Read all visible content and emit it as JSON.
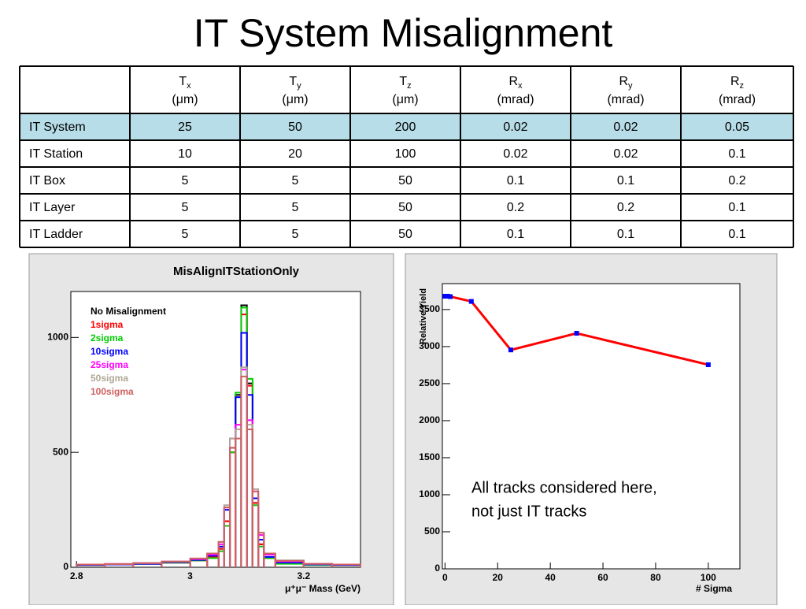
{
  "title": "IT System Misalignment",
  "table": {
    "header": [
      {
        "symbol": "T",
        "sub": "x",
        "unit": "(μm)"
      },
      {
        "symbol": "T",
        "sub": "y",
        "unit": "(μm)"
      },
      {
        "symbol": "T",
        "sub": "z",
        "unit": "(μm)"
      },
      {
        "symbol": "R",
        "sub": "x",
        "unit": "(mrad)"
      },
      {
        "symbol": "R",
        "sub": "y",
        "unit": "(mrad)"
      },
      {
        "symbol": "R",
        "sub": "z",
        "unit": "(mrad)"
      }
    ],
    "rows": [
      [
        "IT System",
        25,
        50,
        200,
        0.02,
        0.02,
        0.05
      ],
      [
        "IT Station",
        10,
        20,
        100,
        0.02,
        0.02,
        0.1
      ],
      [
        "IT Box",
        5,
        5,
        50,
        0.1,
        0.1,
        0.2
      ],
      [
        "IT Layer",
        5,
        5,
        50,
        0.2,
        0.2,
        0.1
      ],
      [
        "IT Ladder",
        5,
        5,
        50,
        0.1,
        0.1,
        0.1
      ]
    ]
  },
  "chart_data": [
    {
      "type": "histogram",
      "title": "MisAlignITStationOnly",
      "x_label": "μ⁺μ⁻ Mass (GeV)",
      "bins": [
        2.8,
        2.85,
        2.9,
        2.95,
        3.0,
        3.03,
        3.05,
        3.06,
        3.07,
        3.08,
        3.09,
        3.1,
        3.11,
        3.12,
        3.13,
        3.15,
        3.2,
        3.25,
        3.3
      ],
      "series": [
        {
          "name": "No Misalignment",
          "color": "#000000",
          "values": [
            10,
            12,
            15,
            20,
            30,
            45,
            80,
            200,
            500,
            750,
            1140,
            800,
            280,
            100,
            40,
            20,
            12,
            10
          ]
        },
        {
          "name": "1sigma",
          "color": "#ff0000",
          "values": [
            10,
            12,
            15,
            20,
            30,
            45,
            80,
            200,
            500,
            740,
            1100,
            790,
            280,
            100,
            40,
            22,
            12,
            10
          ]
        },
        {
          "name": "2sigma",
          "color": "#00cc00",
          "values": [
            10,
            12,
            15,
            20,
            30,
            40,
            70,
            180,
            500,
            760,
            1130,
            820,
            270,
            90,
            40,
            15,
            10,
            10
          ]
        },
        {
          "name": "10sigma",
          "color": "#0000ff",
          "values": [
            10,
            12,
            15,
            22,
            32,
            50,
            90,
            250,
            520,
            740,
            1020,
            750,
            300,
            120,
            45,
            20,
            12,
            10
          ]
        },
        {
          "name": "25sigma",
          "color": "#ff00ff",
          "values": [
            12,
            14,
            18,
            25,
            35,
            55,
            100,
            260,
            560,
            620,
            860,
            640,
            330,
            140,
            55,
            25,
            15,
            12
          ]
        },
        {
          "name": "50sigma",
          "color": "#b0a898",
          "values": [
            12,
            14,
            18,
            25,
            38,
            60,
            110,
            270,
            560,
            600,
            870,
            620,
            340,
            150,
            60,
            30,
            15,
            12
          ]
        },
        {
          "name": "100sigma",
          "color": "#d06060",
          "values": [
            12,
            14,
            18,
            25,
            38,
            60,
            110,
            260,
            520,
            560,
            830,
            600,
            330,
            150,
            60,
            28,
            15,
            12
          ]
        }
      ],
      "xlim": [
        2.79,
        3.3
      ],
      "xticks": [
        2.8,
        3,
        3.2
      ],
      "ylim": [
        0,
        1200
      ],
      "yticks": [
        0,
        500,
        1000
      ]
    },
    {
      "type": "line",
      "x_label": "# Sigma",
      "y_label": "Relative Yield",
      "x": [
        0,
        1,
        2,
        10,
        25,
        50,
        100
      ],
      "series": [
        {
          "color": "#ff0000",
          "marker_color": "#0000ff",
          "values": [
            3680,
            3680,
            3675,
            3610,
            2955,
            3180,
            2755
          ]
        }
      ],
      "xlim": [
        -1,
        112
      ],
      "xticks": [
        0,
        20,
        40,
        60,
        80,
        100
      ],
      "ylim": [
        0,
        3850
      ],
      "yticks": [
        0,
        500,
        1000,
        1500,
        2000,
        2500,
        3000,
        3500
      ]
    }
  ],
  "note": [
    "All tracks considered here,",
    "not just IT tracks"
  ]
}
